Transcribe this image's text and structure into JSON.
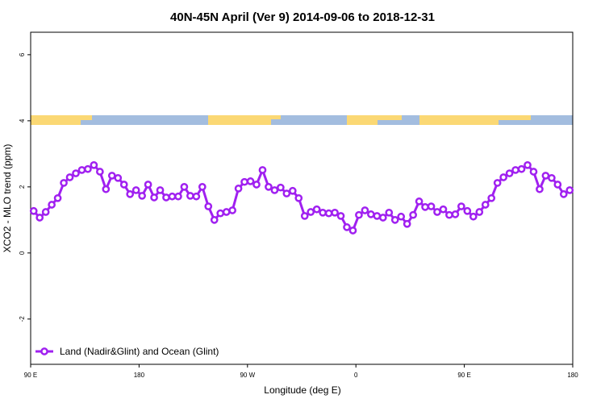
{
  "chart_data": {
    "type": "line",
    "title": "40N-45N April (Ver 9)   2014-09-06 to 2018-12-31",
    "xlabel": "Longitude (deg E)",
    "ylabel": "XCO2 - MLO trend (ppm)",
    "x": [
      92.5,
      97.5,
      102.5,
      107.5,
      112.5,
      117.5,
      122.5,
      127.5,
      132.5,
      137.5,
      142.5,
      147.5,
      152.5,
      157.5,
      162.5,
      167.5,
      172.5,
      177.5,
      182.5,
      187.5,
      192.5,
      197.5,
      202.5,
      207.5,
      212.5,
      217.5,
      222.5,
      227.5,
      232.5,
      237.5,
      242.5,
      247.5,
      252.5,
      257.5,
      262.5,
      267.5,
      272.5,
      277.5,
      282.5,
      287.5,
      292.5,
      297.5,
      302.5,
      307.5,
      312.5,
      317.5,
      322.5,
      327.5,
      332.5,
      337.5,
      342.5,
      347.5,
      352.5,
      357.5,
      362.5,
      367.5,
      372.5,
      377.5,
      382.5,
      387.5,
      392.5,
      397.5,
      402.5,
      407.5,
      412.5,
      417.5,
      422.5,
      427.5,
      432.5,
      437.5,
      442.5,
      447.5,
      452.5,
      457.5,
      462.5,
      467.5,
      472.5,
      477.5,
      482.5,
      487.5,
      492.5,
      497.5,
      502.5,
      507.5,
      512.5,
      517.5,
      522.5,
      527.5,
      532.5,
      537.5
    ],
    "series": [
      {
        "name": "Land (Nadir&Glint) and Ocean (Glint)",
        "color": "#a020f0",
        "values": [
          1.27,
          1.07,
          1.24,
          1.46,
          1.66,
          2.12,
          2.29,
          2.41,
          2.51,
          2.54,
          2.66,
          2.46,
          1.93,
          2.34,
          2.27,
          2.07,
          1.78,
          1.9,
          1.73,
          2.07,
          1.68,
          1.9,
          1.68,
          1.71,
          1.71,
          2.0,
          1.73,
          1.71,
          2.0,
          1.41,
          1.0,
          1.2,
          1.24,
          1.29,
          1.95,
          2.15,
          2.17,
          2.07,
          2.51,
          2.0,
          1.9,
          1.98,
          1.8,
          1.88,
          1.66,
          1.12,
          1.24,
          1.32,
          1.22,
          1.2,
          1.22,
          1.12,
          0.78,
          0.68,
          1.15,
          1.29,
          1.17,
          1.12,
          1.07,
          1.22,
          1.0,
          1.1,
          0.88,
          1.15,
          1.56,
          1.39,
          1.41,
          1.24,
          1.32,
          1.15,
          1.17,
          1.41,
          1.27,
          1.1,
          1.24,
          1.46,
          1.66,
          2.12,
          2.29,
          2.41,
          2.51,
          2.54,
          2.66,
          2.46,
          1.93,
          2.34,
          2.27,
          2.07,
          1.78,
          1.9
        ]
      }
    ],
    "xlim": [
      90,
      540
    ],
    "xticks": [
      {
        "value": 90,
        "label": "90 E"
      },
      180,
      {
        "value": 270,
        "label": "90 W"
      },
      {
        "value": 360,
        "label": "0"
      },
      {
        "value": 450,
        "label": "90 E"
      },
      {
        "value": 540,
        "label": "180"
      }
    ],
    "ylim": [
      -3.37,
      6.68
    ],
    "yticks": [
      -2,
      0,
      2,
      4,
      6
    ],
    "grid": false,
    "legend": "bottom-left"
  }
}
